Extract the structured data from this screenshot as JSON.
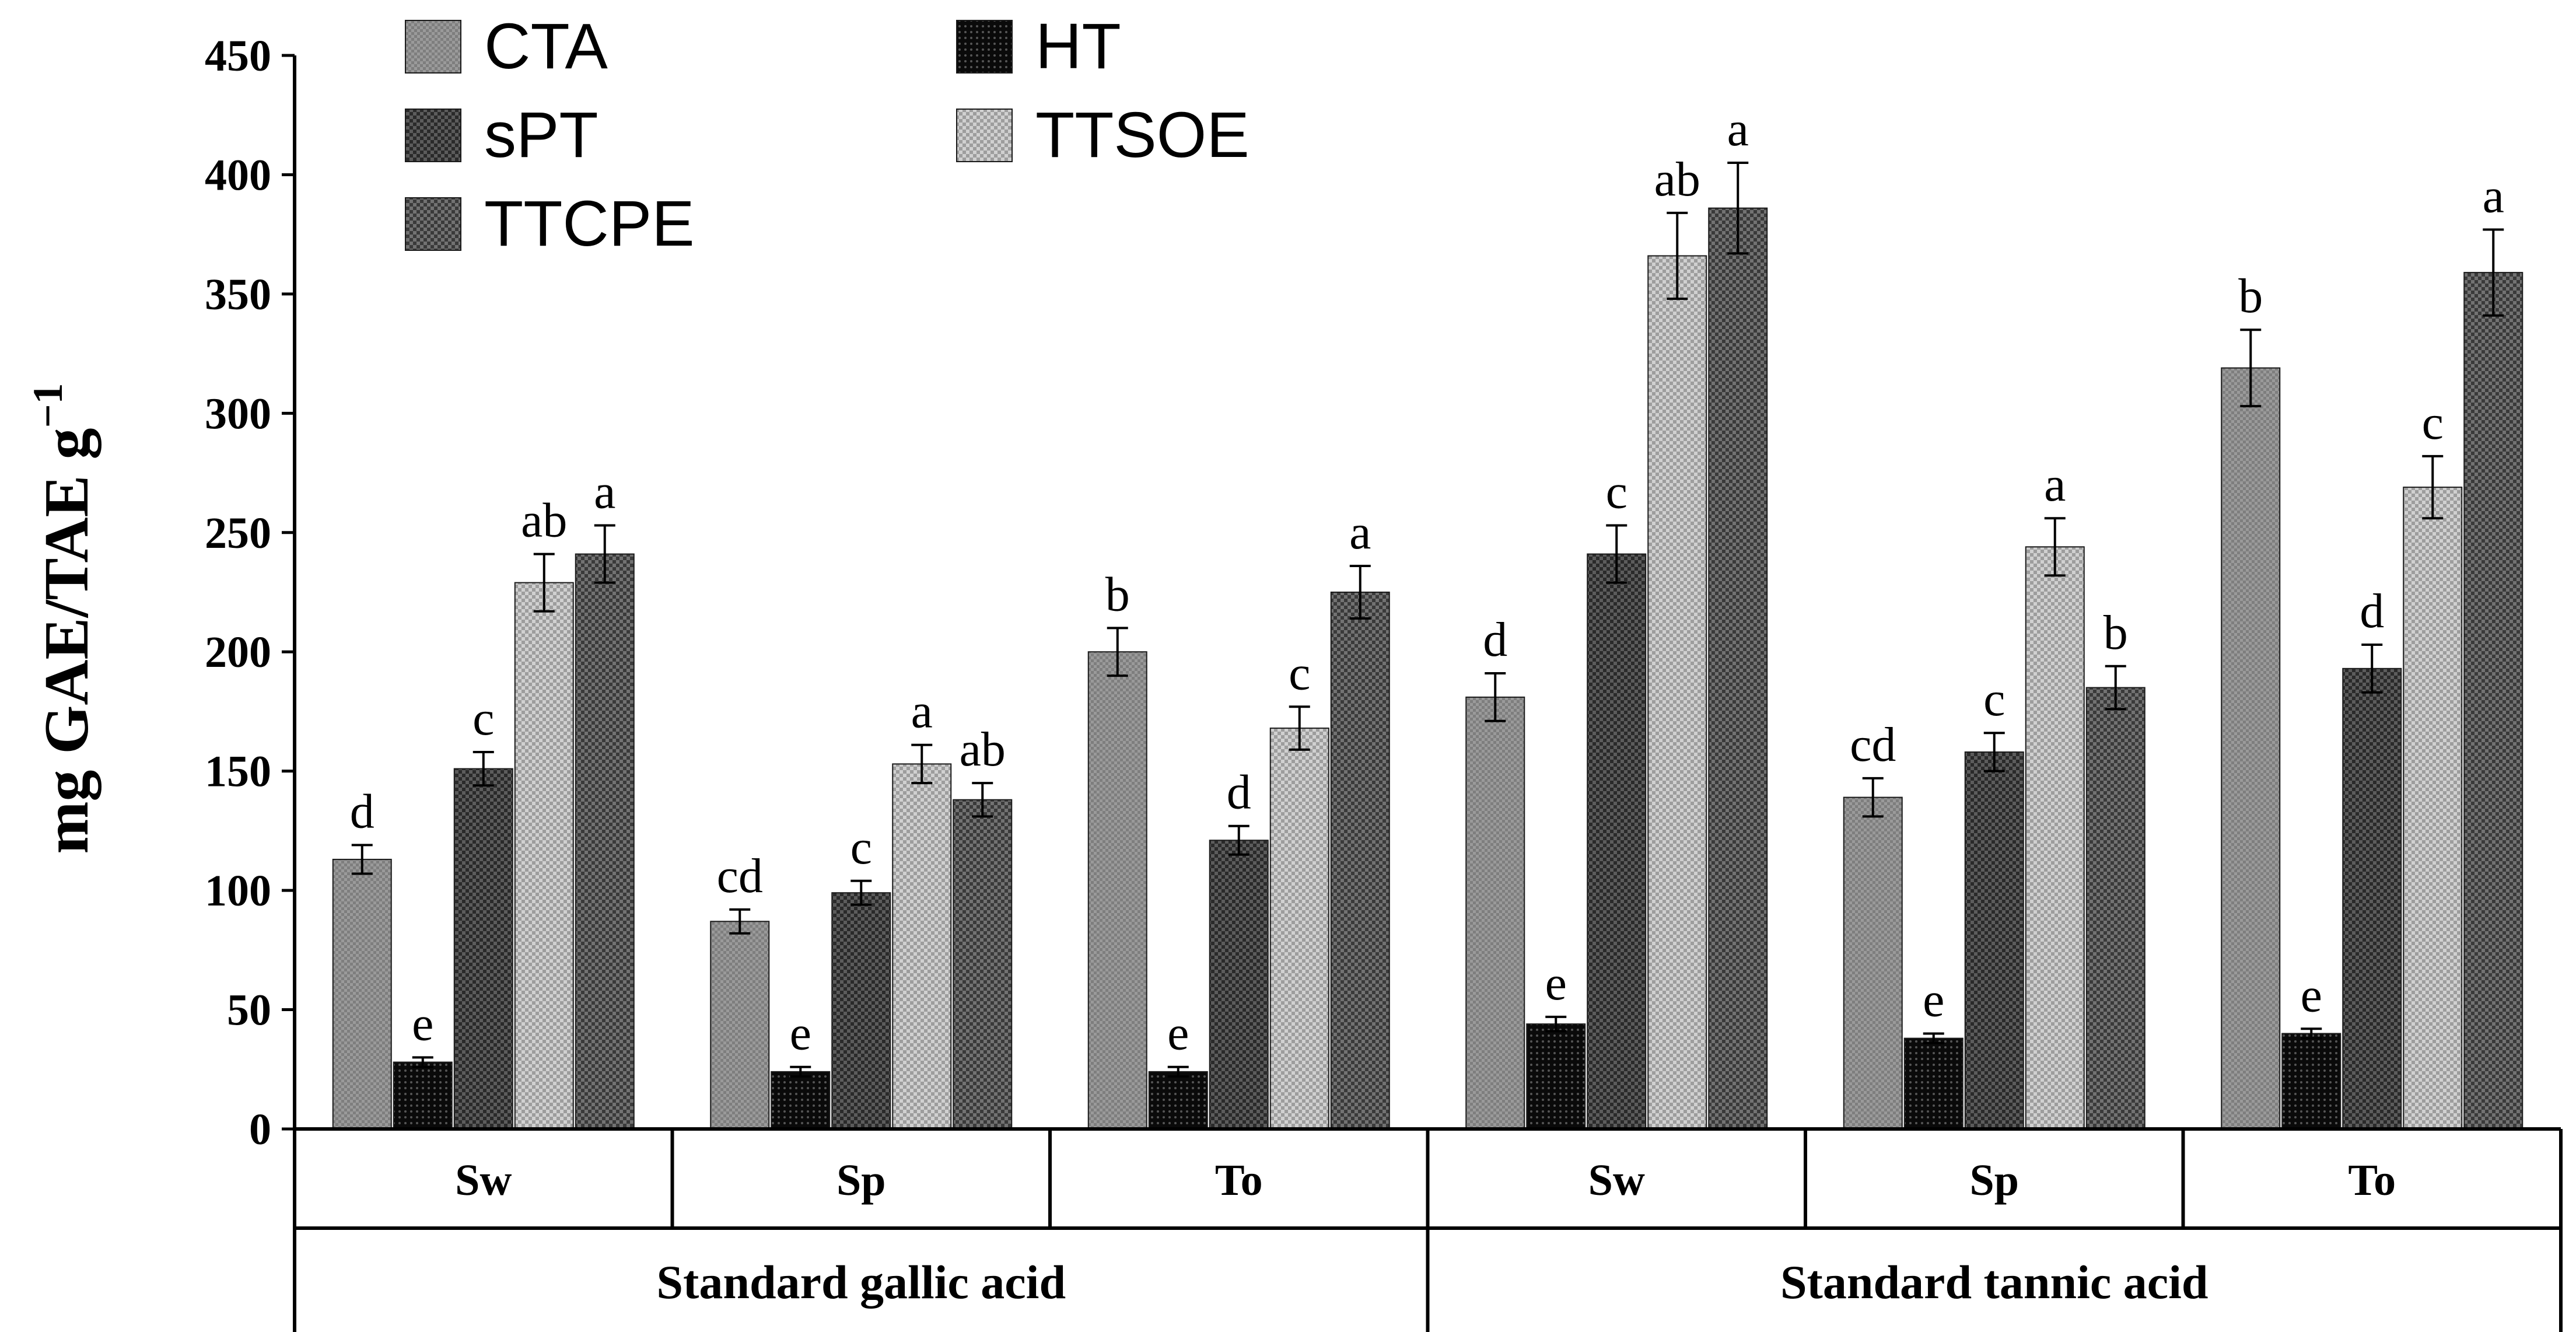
{
  "chart_data": {
    "type": "bar",
    "ylabel": "mg GAE/TAE g",
    "ylabel_superscript": "−1",
    "ylim": [
      0,
      450
    ],
    "yticks": [
      0,
      50,
      100,
      150,
      200,
      250,
      300,
      350,
      400,
      450
    ],
    "legend_position": "top-left",
    "categories": [
      "Sw",
      "Sp",
      "To",
      "Sw",
      "Sp",
      "To"
    ],
    "groups": [
      {
        "name": "Standard gallic acid",
        "categories": [
          "Sw",
          "Sp",
          "To"
        ]
      },
      {
        "name": "Standard tannic acid",
        "categories": [
          "Sw",
          "Sp",
          "To"
        ]
      }
    ],
    "series": [
      {
        "name": "CTA",
        "color": "#8c8c8c",
        "pattern": "dots-light",
        "values": [
          113,
          87,
          200,
          181,
          139,
          319
        ],
        "errors": [
          6,
          5,
          10,
          10,
          8,
          16
        ],
        "labels": [
          "d",
          "cd",
          "b",
          "d",
          "cd",
          "b"
        ]
      },
      {
        "name": "HT",
        "color": "#111111",
        "pattern": "black-dots",
        "values": [
          28,
          24,
          24,
          44,
          38,
          40
        ],
        "errors": [
          2,
          2,
          2,
          3,
          2,
          2
        ],
        "labels": [
          "e",
          "e",
          "e",
          "e",
          "e",
          "e"
        ]
      },
      {
        "name": "sPT",
        "color": "#3a3a3a",
        "pattern": "checker-dark",
        "values": [
          151,
          99,
          121,
          241,
          158,
          193
        ],
        "errors": [
          7,
          5,
          6,
          12,
          8,
          10
        ],
        "labels": [
          "c",
          "c",
          "d",
          "c",
          "c",
          "d"
        ]
      },
      {
        "name": "TTSOE",
        "color": "#b8b8b8",
        "pattern": "checker-light",
        "values": [
          229,
          153,
          168,
          366,
          244,
          269
        ],
        "errors": [
          12,
          8,
          9,
          18,
          12,
          13
        ],
        "labels": [
          "ab",
          "a",
          "c",
          "ab",
          "a",
          "c"
        ]
      },
      {
        "name": "TTCPE",
        "color": "#4a4a4a",
        "pattern": "checker-mid",
        "values": [
          241,
          138,
          225,
          386,
          185,
          359
        ],
        "errors": [
          12,
          7,
          11,
          19,
          9,
          18
        ],
        "labels": [
          "a",
          "ab",
          "a",
          "a",
          "b",
          "a"
        ]
      }
    ]
  }
}
